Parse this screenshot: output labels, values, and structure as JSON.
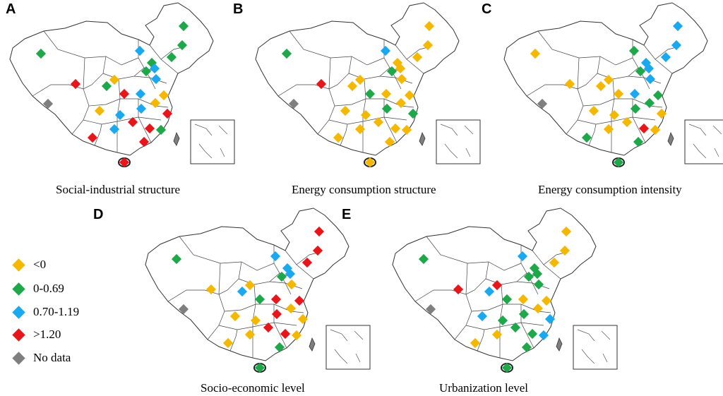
{
  "colors": {
    "lt0": "#f5b800",
    "g0_069": "#1ea84a",
    "g070_119": "#1aa9ee",
    "gt120": "#e8161b",
    "nodata": "#7f7f7f"
  },
  "legend": {
    "items": [
      {
        "key": "lt0",
        "label": "<0"
      },
      {
        "key": "g0_069",
        "label": "0-0.69"
      },
      {
        "key": "g070_119",
        "label": "0.70-1.19"
      },
      {
        "key": "gt120",
        "label": ">1.20"
      },
      {
        "key": "nodata",
        "label": "No data"
      }
    ]
  },
  "panels": [
    {
      "letter": "A",
      "caption": "Social-industrial structure",
      "markers": [
        "g0_069",
        "g0_069",
        "g070_119",
        "g0_069",
        "g0_069",
        "g0_069",
        "g070_119",
        "lt0",
        "g0_069",
        "gt120",
        "g070_119",
        "g0_069",
        "gt120",
        "g070_119",
        "lt0",
        "g070_119",
        "lt0",
        "lt0",
        "gt120",
        "g070_119",
        "gt120",
        "gt120",
        "g070_119",
        "g0_069",
        "gt120",
        "gt120",
        "nodata",
        "gt120"
      ]
    },
    {
      "letter": "B",
      "caption": "Energy consumption structure",
      "markers": [
        "lt0",
        "lt0",
        "g070_119",
        "g0_069",
        "lt0",
        "lt0",
        "lt0",
        "lt0",
        "g0_069",
        "gt120",
        "lt0",
        "lt0",
        "g0_069",
        "lt0",
        "lt0",
        "g0_069",
        "lt0",
        "lt0",
        "g0_069",
        "lt0",
        "lt0",
        "lt0",
        "lt0",
        "lt0",
        "lt0",
        "lt0",
        "nodata",
        "lt0"
      ]
    },
    {
      "letter": "C",
      "caption": "Energy consumption intensity",
      "markers": [
        "g070_119",
        "g070_119",
        "g0_069",
        "lt0",
        "g070_119",
        "g070_119",
        "g070_119",
        "lt0",
        "g0_069",
        "lt0",
        "g070_119",
        "lt0",
        "lt0",
        "g070_119",
        "g0_069",
        "g0_069",
        "lt0",
        "g0_069",
        "lt0",
        "lt0",
        "lt0",
        "gt120",
        "lt0",
        "lt0",
        "g0_069",
        "g0_069",
        "nodata",
        "g0_069"
      ]
    },
    {
      "letter": "D",
      "caption": "Socio-economic level",
      "markers": [
        "gt120",
        "gt120",
        "g070_119",
        "g0_069",
        "gt120",
        "g070_119",
        "g070_119",
        "lt0",
        "g0_069",
        "lt0",
        "lt0",
        "g070_119",
        "g0_069",
        "gt120",
        "gt120",
        "gt120",
        "lt0",
        "lt0",
        "lt0",
        "lt0",
        "gt120",
        "gt120",
        "lt0",
        "lt0",
        "lt0",
        "g0_069",
        "nodata",
        "g0_069"
      ]
    },
    {
      "letter": "E",
      "caption": "Urbanization level",
      "markers": [
        "lt0",
        "lt0",
        "g070_119",
        "g0_069",
        "lt0",
        "g0_069",
        "g0_069",
        "gt120",
        "g0_069",
        "gt120",
        "g0_069",
        "g070_119",
        "g0_069",
        "lt0",
        "lt0",
        "g0_069",
        "g070_119",
        "lt0",
        "g070_119",
        "g0_069",
        "g0_069",
        "g0_069",
        "lt0",
        "g070_119",
        "lt0",
        "g0_069",
        "nodata",
        "g0_069"
      ]
    }
  ]
}
